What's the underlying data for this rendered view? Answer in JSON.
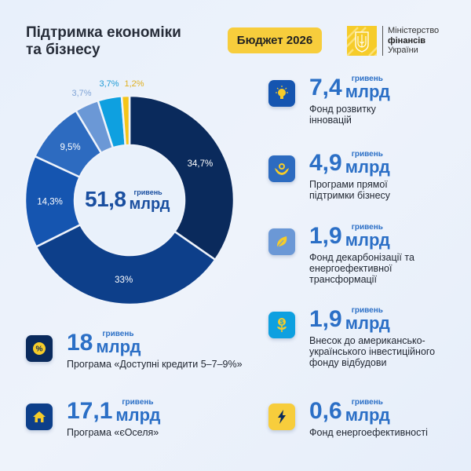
{
  "header": {
    "title_line1": "Підтримка економіки",
    "title_line2": "та бізнесу",
    "badge": "Бюджет 2026",
    "ministry_line1": "Міністерство",
    "ministry_line2": "фінансів",
    "ministry_line3": "України",
    "logo_icon": "trident-coat-of-arms-icon"
  },
  "center": {
    "value": "51,8",
    "unit_small": "гривень",
    "unit_big": "млрд"
  },
  "items": [
    {
      "value": "18",
      "unit_small": "гривень",
      "unit_big": "млрд",
      "desc": "Програма «Доступні кредити 5–7–9%»",
      "icon": "percent-icon",
      "color": "#0a2a5c"
    },
    {
      "value": "17,1",
      "unit_small": "гривень",
      "unit_big": "млрд",
      "desc": "Програма «єОселя»",
      "icon": "house-icon",
      "color": "#0d3f8a"
    },
    {
      "value": "7,4",
      "unit_small": "гривень",
      "unit_big": "млрд",
      "desc": "Фонд розвитку інновацій",
      "icon": "lightbulb-icon",
      "color": "#1555b0"
    },
    {
      "value": "4,9",
      "unit_small": "гривень",
      "unit_big": "млрд",
      "desc": "Програми прямої підтримки бізнесу",
      "icon": "hands-flower-icon",
      "color": "#2d6bc0"
    },
    {
      "value": "1,9",
      "unit_small": "гривень",
      "unit_big": "млрд",
      "desc": "Фонд декарбонізації та енергоефективної трансформації",
      "icon": "leaf-icon",
      "color": "#6b98d6"
    },
    {
      "value": "1,9",
      "unit_small": "гривень",
      "unit_big": "млрд",
      "desc": "Внесок до американсько-українського інвестиційного фонду відбудови",
      "icon": "money-plant-icon",
      "color": "#0ea0e0"
    },
    {
      "value": "0,6",
      "unit_small": "гривень",
      "unit_big": "млрд",
      "desc": "Фонд енергоефективності",
      "icon": "lightning-icon",
      "color": "#f5c518"
    }
  ],
  "chart_data": {
    "type": "pie",
    "subtype": "donut",
    "title": "Підтримка економіки та бізнесу",
    "total_label": "51,8 млрд гривень",
    "total": 51.8,
    "categories": [
      "Програма «Доступні кредити 5–7–9%»",
      "Програма «єОселя»",
      "Фонд розвитку інновацій",
      "Програми прямої підтримки бізнесу",
      "Фонд декарбонізації та енергоефективної трансформації",
      "Внесок до американсько-українського інвестиційного фонду відбудови",
      "Фонд енергоефективності"
    ],
    "values": [
      18,
      17.1,
      7.4,
      4.9,
      1.9,
      1.9,
      0.6
    ],
    "percent_labels": [
      "34,7%",
      "33%",
      "14,3%",
      "9,5%",
      "3,7%",
      "3,7%",
      "1,2%"
    ],
    "percents": [
      34.7,
      33,
      14.3,
      9.5,
      3.7,
      3.7,
      1.2
    ],
    "colors": [
      "#0a2a5c",
      "#0d3f8a",
      "#1555b0",
      "#2d6bc0",
      "#6b98d6",
      "#0ea0e0",
      "#f5c518"
    ],
    "unit": "млрд гривень"
  }
}
